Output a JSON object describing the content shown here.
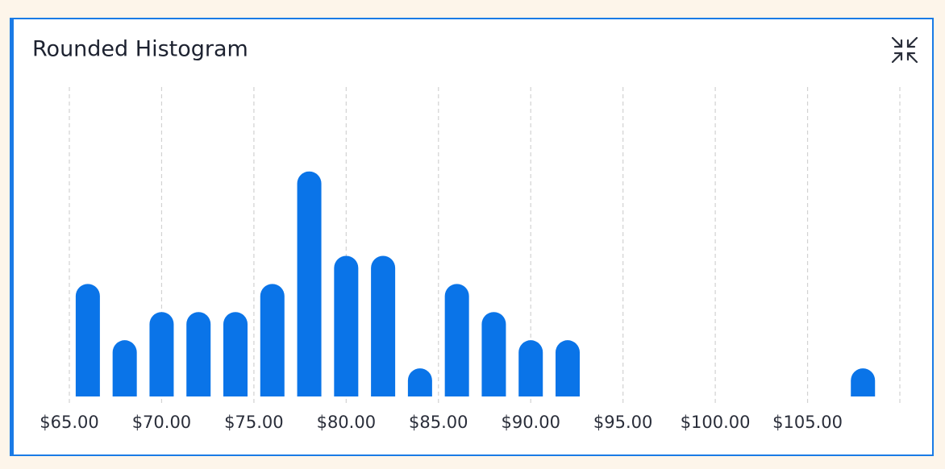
{
  "chart_data": {
    "type": "histogram",
    "title": "Rounded Histogram",
    "bins": [
      65,
      67,
      69,
      71,
      73,
      75,
      77,
      79,
      81,
      83,
      85,
      87,
      89,
      91,
      93,
      95,
      97,
      99,
      101,
      103,
      105,
      107,
      109
    ],
    "values": [
      4,
      2,
      3,
      3,
      3,
      4,
      8,
      5,
      5,
      1,
      4,
      3,
      2,
      2,
      0,
      0,
      0,
      0,
      0,
      0,
      0,
      1
    ],
    "color": "#0a74e8",
    "xlim": [
      65,
      110
    ],
    "xticks": [
      {
        "value": 65,
        "label": "$65.00"
      },
      {
        "value": 70,
        "label": "$70.00"
      },
      {
        "value": 75,
        "label": "$75.00"
      },
      {
        "value": 80,
        "label": "$80.00"
      },
      {
        "value": 85,
        "label": "$85.00"
      },
      {
        "value": 90,
        "label": "$90.00"
      },
      {
        "value": 95,
        "label": "$95.00"
      },
      {
        "value": 100,
        "label": "$100.00"
      },
      {
        "value": 105,
        "label": "$105.00"
      }
    ],
    "ylim": [
      0,
      11
    ],
    "grid": true
  }
}
